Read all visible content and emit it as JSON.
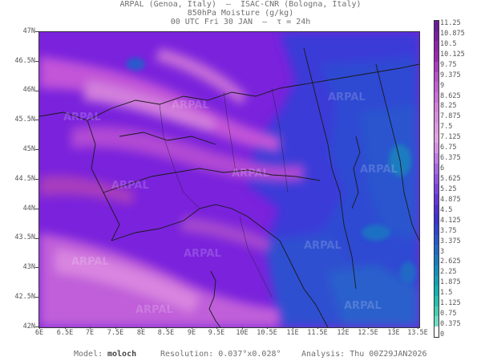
{
  "header": {
    "line1": "ARPAL (Genoa, Italy)  —  ISAC-CNR (Bologna, Italy)",
    "line2": "850hPa Moisture (g/kg)",
    "line3": "00 UTC Fri 30 JAN  —  τ = 24h"
  },
  "axes": {
    "lat_labels": [
      "47N",
      "46.5N",
      "46N",
      "45.5N",
      "45N",
      "44.5N",
      "44N",
      "43.5N",
      "43N",
      "42.5N",
      "42N"
    ],
    "lon_labels": [
      "6E",
      "6.5E",
      "7E",
      "7.5E",
      "8E",
      "8.5E",
      "9E",
      "9.5E",
      "10E",
      "10.5E",
      "11E",
      "11.5E",
      "12E",
      "12.5E",
      "13E",
      "13.5E"
    ]
  },
  "colorbar": {
    "labels": [
      "11.25",
      "10.875",
      "10.5",
      "10.125",
      "9.75",
      "9.375",
      "9",
      "8.625",
      "8.25",
      "7.875",
      "7.5",
      "7.125",
      "6.75",
      "6.375",
      "6",
      "5.625",
      "5.25",
      "4.875",
      "4.5",
      "4.125",
      "3.75",
      "3.375",
      "3",
      "2.625",
      "2.25",
      "1.875",
      "1.5",
      "1.125",
      "0.75",
      "0.375",
      "0"
    ],
    "colors": [
      "#6a1b9a",
      "#7b1fa2",
      "#8e24aa",
      "#9c27b0",
      "#a83dbd",
      "#b552c8",
      "#c060d2",
      "#c86fd8",
      "#d27fdc",
      "#d98be0",
      "#e096e3",
      "#e3a0e6",
      "#d98ee8",
      "#c27ae8",
      "#a866e6",
      "#9153e3",
      "#7a43df",
      "#6436da",
      "#4f2fd6",
      "#3b33d2",
      "#2f44cf",
      "#2857cc",
      "#2169c6",
      "#1a7cc0",
      "#148fba",
      "#10a1b5",
      "#0fb3b0",
      "#25c2ae",
      "#45cfb5",
      "#70dcc6",
      "#ffffff"
    ]
  },
  "watermark": "ARPAL",
  "footer": {
    "model_label": "Model:",
    "model_name": "moloch",
    "resolution": "Resolution: 0.037°x0.028°",
    "analysis": "Analysis: Thu 00Z29JAN2026"
  }
}
